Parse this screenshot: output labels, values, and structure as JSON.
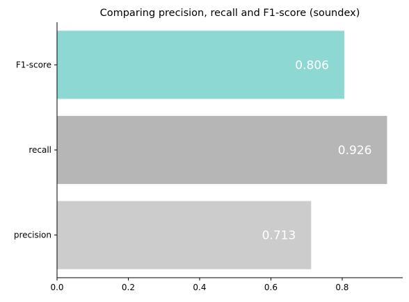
{
  "chart_data": {
    "type": "bar",
    "orientation": "horizontal",
    "title": "Comparing precision, recall and F1-score (soundex)",
    "xlabel": "",
    "ylabel": "",
    "categories": [
      "precision",
      "recall",
      "F1-score"
    ],
    "values": [
      0.713,
      0.926,
      0.806
    ],
    "data_labels": [
      "0.713",
      "0.926",
      "0.806"
    ],
    "colors": [
      "#cccccc",
      "#b6b6b6",
      "#8dd8d3"
    ],
    "label_color": "#ffffff",
    "xlim": [
      0,
      0.97
    ],
    "xticks": [
      0.0,
      0.2,
      0.4,
      0.6,
      0.8
    ],
    "xtick_labels": [
      "0.0",
      "0.2",
      "0.4",
      "0.6",
      "0.8"
    ],
    "grid": false,
    "legend": "none",
    "spines": [
      "left",
      "bottom"
    ]
  }
}
